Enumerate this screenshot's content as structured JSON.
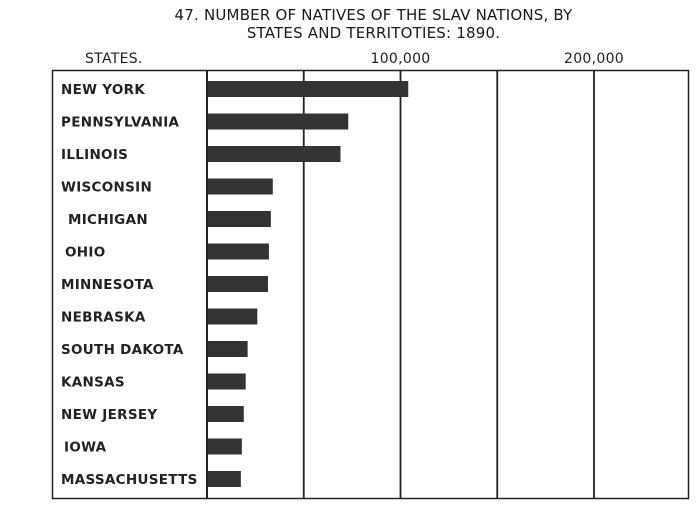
{
  "chart_data": {
    "type": "bar",
    "orientation": "horizontal",
    "title_line1": "47. NUMBER OF NATIVES OF THE SLAV NATIONS, BY",
    "title_line2": "STATES AND TERRITOTIES: 1890.",
    "category_header": "STATES.",
    "tick_labels": [
      "100,000",
      "200,000"
    ],
    "tick_values": [
      100000,
      200000
    ],
    "xlim": [
      0,
      250000
    ],
    "grid": true,
    "categories": [
      "NEW YORK",
      "PENNSYLVANIA",
      "ILLINOIS",
      "WISCONSIN",
      "MICHIGAN",
      "OHIO",
      "MINNESOTA",
      "NEBRASKA",
      "SOUTH DAKOTA",
      "KANSAS",
      "NEW JERSEY",
      "IOWA",
      "MASSACHUSETTS"
    ],
    "values": [
      104000,
      73000,
      69000,
      34000,
      33000,
      32000,
      31500,
      26000,
      21000,
      20000,
      19000,
      18000,
      17500
    ],
    "bar_color": "#333333"
  }
}
